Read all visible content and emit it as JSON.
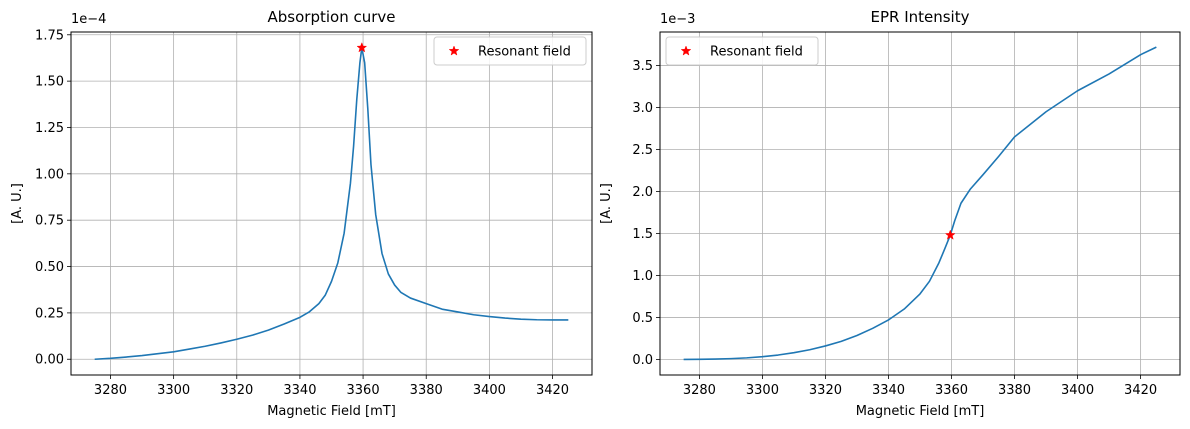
{
  "chart_data": [
    {
      "type": "line",
      "title": "Absorption curve",
      "xlabel": "Magnetic Field [mT]",
      "ylabel": "[A. U.]",
      "offset_label": "1e−4",
      "xlim": [
        3267.5,
        3432.5
      ],
      "ylim": [
        -0.085,
        1.765
      ],
      "xticks": [
        3280,
        3300,
        3320,
        3340,
        3360,
        3380,
        3400,
        3420
      ],
      "yticks": [
        0.0,
        0.25,
        0.5,
        0.75,
        1.0,
        1.25,
        1.5,
        1.75
      ],
      "ytick_labels": [
        "0.00",
        "0.25",
        "0.50",
        "0.75",
        "1.00",
        "1.25",
        "1.50",
        "1.75"
      ],
      "grid": true,
      "legend_position": "top-right",
      "series": [
        {
          "name": "",
          "color": "#1f77b4",
          "x": [
            3275,
            3280,
            3285,
            3290,
            3295,
            3300,
            3305,
            3310,
            3315,
            3320,
            3325,
            3330,
            3335,
            3340,
            3343,
            3346,
            3348,
            3350,
            3352,
            3354,
            3356,
            3357,
            3358,
            3359,
            3359.6,
            3360.5,
            3361.5,
            3362.5,
            3364,
            3366,
            3368,
            3370,
            3372,
            3375,
            3380,
            3385,
            3390,
            3395,
            3400,
            3405,
            3410,
            3415,
            3420,
            3425
          ],
          "y": [
            0.0,
            0.005,
            0.012,
            0.02,
            0.03,
            0.04,
            0.055,
            0.07,
            0.088,
            0.108,
            0.13,
            0.157,
            0.19,
            0.226,
            0.256,
            0.3,
            0.345,
            0.42,
            0.52,
            0.68,
            0.95,
            1.15,
            1.4,
            1.6,
            1.68,
            1.6,
            1.35,
            1.05,
            0.78,
            0.57,
            0.46,
            0.4,
            0.36,
            0.33,
            0.3,
            0.27,
            0.255,
            0.24,
            0.23,
            0.222,
            0.216,
            0.213,
            0.212,
            0.212
          ]
        },
        {
          "name": "Resonant field",
          "color": "#ff0000",
          "marker": "star",
          "x": [
            3359.6
          ],
          "y": [
            1.68
          ]
        }
      ]
    },
    {
      "type": "line",
      "title": "EPR Intensity",
      "xlabel": "Magnetic Field [mT]",
      "ylabel": "[A. U.]",
      "offset_label": "1e−3",
      "xlim": [
        3267.5,
        3432.5
      ],
      "ylim": [
        -0.186,
        3.9
      ],
      "xticks": [
        3280,
        3300,
        3320,
        3340,
        3360,
        3380,
        3400,
        3420
      ],
      "yticks": [
        0.0,
        0.5,
        1.0,
        1.5,
        2.0,
        2.5,
        3.0,
        3.5
      ],
      "ytick_labels": [
        "0.0",
        "0.5",
        "1.0",
        "1.5",
        "2.0",
        "2.5",
        "3.0",
        "3.5"
      ],
      "grid": true,
      "legend_position": "top-left",
      "series": [
        {
          "name": "",
          "color": "#1f77b4",
          "x": [
            3275,
            3280,
            3285,
            3290,
            3295,
            3300,
            3305,
            3310,
            3315,
            3320,
            3325,
            3330,
            3335,
            3340,
            3345,
            3350,
            3353,
            3356,
            3358,
            3359.6,
            3361,
            3363,
            3366,
            3370,
            3375,
            3380,
            3390,
            3400,
            3410,
            3420,
            3425
          ],
          "y": [
            0.0,
            0.001,
            0.004,
            0.009,
            0.018,
            0.032,
            0.052,
            0.08,
            0.115,
            0.16,
            0.215,
            0.285,
            0.37,
            0.47,
            0.6,
            0.78,
            0.93,
            1.15,
            1.33,
            1.48,
            1.65,
            1.86,
            2.03,
            2.2,
            2.42,
            2.65,
            2.95,
            3.2,
            3.4,
            3.63,
            3.72
          ]
        },
        {
          "name": "Resonant field",
          "color": "#ff0000",
          "marker": "star",
          "x": [
            3359.6
          ],
          "y": [
            1.48
          ]
        }
      ]
    }
  ]
}
